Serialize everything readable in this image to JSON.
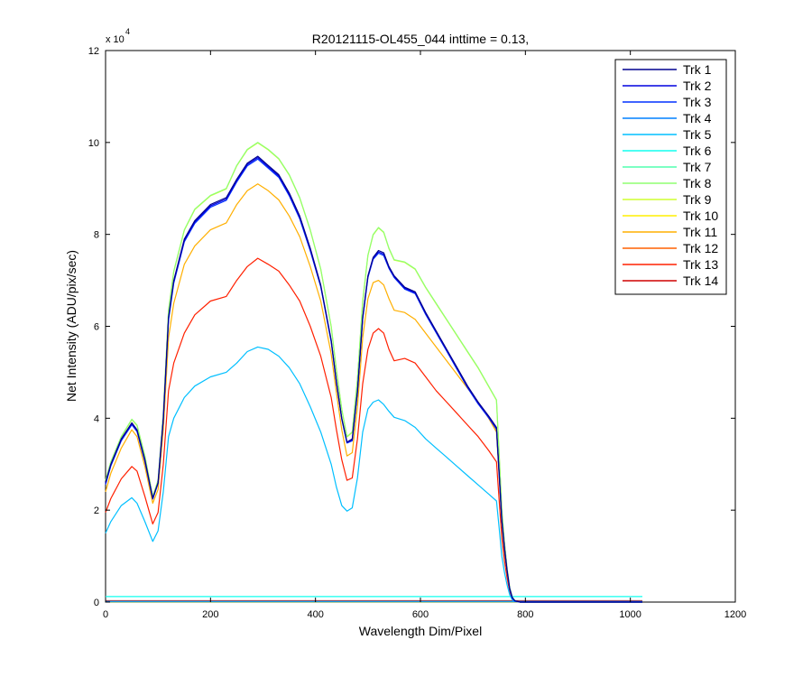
{
  "chart_data": {
    "type": "line",
    "title": "R20121115-OL455_044 inttime = 0.13,",
    "xlabel": "Wavelength Dim/Pixel",
    "ylabel": "Net Intensity (ADU/pix/sec)",
    "y_exponent_base": "x 10",
    "y_exponent_power": "4",
    "xlim": [
      0,
      1200
    ],
    "ylim": [
      0,
      120000
    ],
    "x_ticks": [
      0,
      200,
      400,
      600,
      800,
      1000,
      1200
    ],
    "x_tick_labels": [
      "0",
      "200",
      "400",
      "600",
      "800",
      "1000",
      "1200"
    ],
    "y_ticks": [
      0,
      20000,
      40000,
      60000,
      80000,
      100000,
      120000
    ],
    "y_tick_labels": [
      "0",
      "2",
      "4",
      "6",
      "8",
      "10",
      "12"
    ],
    "grid": false,
    "legend_position": "top-right",
    "x": [
      0,
      10,
      30,
      50,
      60,
      75,
      90,
      100,
      110,
      120,
      130,
      150,
      170,
      200,
      230,
      250,
      270,
      290,
      310,
      330,
      350,
      370,
      390,
      410,
      430,
      440,
      450,
      460,
      470,
      480,
      490,
      500,
      510,
      520,
      530,
      540,
      550,
      570,
      590,
      610,
      630,
      650,
      670,
      690,
      710,
      730,
      745,
      750,
      755,
      760,
      765,
      770,
      775,
      780,
      790,
      800,
      850,
      900,
      950,
      1000,
      1023
    ],
    "series": [
      {
        "name": "Trk 1",
        "color": "#00008f",
        "values": [
          26000,
          30000,
          35500,
          39000,
          37500,
          31000,
          22600,
          26000,
          40000,
          62000,
          70000,
          79000,
          83000,
          86500,
          88000,
          92000,
          95500,
          97000,
          95000,
          93000,
          89000,
          84000,
          77000,
          69000,
          57000,
          48000,
          40000,
          34800,
          35500,
          46000,
          62000,
          71000,
          75000,
          76500,
          76000,
          73000,
          71000,
          68500,
          67500,
          63000,
          59000,
          55000,
          51000,
          47000,
          43500,
          40500,
          38000,
          28000,
          18000,
          12000,
          7000,
          3000,
          1000,
          300,
          0,
          0,
          0,
          0,
          0,
          0,
          0
        ]
      },
      {
        "name": "Trk 2",
        "color": "#0000df",
        "values": [
          25800,
          29800,
          35300,
          38800,
          37300,
          30800,
          22500,
          25900,
          39800,
          61700,
          69700,
          78700,
          82700,
          86200,
          87700,
          91700,
          95200,
          96700,
          94700,
          92700,
          88700,
          83700,
          76700,
          68800,
          56800,
          47800,
          39900,
          34700,
          35300,
          45800,
          61800,
          70800,
          74800,
          76200,
          75700,
          72800,
          70800,
          68300,
          67300,
          62800,
          58800,
          54800,
          50800,
          46800,
          43300,
          40300,
          37800,
          27800,
          17800,
          11800,
          6900,
          2900,
          900,
          250,
          0,
          0,
          0,
          0,
          0,
          0,
          0
        ]
      },
      {
        "name": "Trk 3",
        "color": "#0030ff",
        "values": [
          25600,
          29600,
          35100,
          38600,
          37100,
          30600,
          22400,
          25800,
          39600,
          61400,
          69400,
          78400,
          82400,
          85900,
          87400,
          91400,
          94900,
          96400,
          94400,
          92400,
          88400,
          83400,
          76400,
          68600,
          56600,
          47600,
          39800,
          34600,
          35100,
          45600,
          61600,
          70600,
          74600,
          75900,
          75400,
          72600,
          70600,
          68100,
          67100,
          62600,
          58600,
          54600,
          50600,
          46600,
          43100,
          40100,
          37600,
          27600,
          17600,
          11600,
          6800,
          2800,
          800,
          200,
          0,
          0,
          0,
          0,
          0,
          0,
          0
        ]
      },
      {
        "name": "Trk 4",
        "color": "#0080ff",
        "values": [
          150,
          150,
          150,
          150,
          150,
          150,
          150,
          150,
          150,
          150,
          150,
          150,
          150,
          150,
          150,
          150,
          150,
          150,
          150,
          150,
          150,
          150,
          150,
          150,
          150,
          150,
          150,
          150,
          150,
          150,
          150,
          150,
          150,
          150,
          150,
          150,
          150,
          150,
          150,
          150,
          150,
          150,
          150,
          150,
          150,
          150,
          150,
          150,
          150,
          150,
          150,
          150,
          150,
          150,
          150,
          150,
          150,
          150,
          150,
          150,
          150
        ]
      },
      {
        "name": "Trk 5",
        "color": "#00bfff",
        "values": [
          15000,
          17500,
          21000,
          22700,
          21500,
          17500,
          13200,
          15500,
          24000,
          36000,
          40000,
          44500,
          47000,
          49000,
          50000,
          52000,
          54500,
          55500,
          55000,
          53500,
          51000,
          47500,
          42500,
          37000,
          30000,
          25000,
          21000,
          19800,
          20500,
          27000,
          37000,
          42000,
          43500,
          44000,
          43000,
          41500,
          40200,
          39500,
          38000,
          35500,
          33500,
          31500,
          29500,
          27500,
          25500,
          23500,
          22000,
          16000,
          10000,
          6500,
          3800,
          1600,
          500,
          150,
          0,
          0,
          0,
          0,
          0,
          0,
          0
        ]
      },
      {
        "name": "Trk 6",
        "color": "#10ffef",
        "values": [
          1200,
          1200,
          1200,
          1200,
          1200,
          1200,
          1200,
          1200,
          1200,
          1200,
          1200,
          1200,
          1200,
          1200,
          1200,
          1200,
          1200,
          1200,
          1200,
          1200,
          1200,
          1200,
          1200,
          1200,
          1200,
          1200,
          1200,
          1200,
          1200,
          1200,
          1200,
          1200,
          1200,
          1200,
          1200,
          1200,
          1200,
          1200,
          1200,
          1200,
          1200,
          1200,
          1200,
          1200,
          1200,
          1200,
          1200,
          1200,
          1200,
          1200,
          1200,
          1200,
          1200,
          1200,
          1200,
          1200,
          1200,
          1200,
          1200,
          1200,
          1200
        ]
      },
      {
        "name": "Trk 7",
        "color": "#50ffaf",
        "values": [
          100,
          100,
          100,
          100,
          100,
          100,
          100,
          100,
          100,
          100,
          100,
          100,
          100,
          100,
          100,
          100,
          100,
          100,
          100,
          100,
          100,
          100,
          100,
          100,
          100,
          100,
          100,
          100,
          100,
          100,
          100,
          100,
          100,
          100,
          100,
          100,
          100,
          100,
          100,
          100,
          100,
          100,
          100,
          100,
          100,
          100,
          100,
          100,
          100,
          100,
          100,
          100,
          100,
          100,
          100,
          100,
          100,
          100,
          100,
          100,
          100
        ]
      },
      {
        "name": "Trk 8",
        "color": "#8fff70",
        "values": [
          26500,
          30500,
          36000,
          39800,
          38500,
          31800,
          23000,
          26500,
          41000,
          63500,
          72000,
          81000,
          85500,
          88500,
          90000,
          95000,
          98500,
          100000,
          98500,
          96500,
          93000,
          88000,
          81000,
          72500,
          60000,
          50500,
          42000,
          36000,
          37000,
          48500,
          65500,
          75500,
          80000,
          81500,
          80500,
          77000,
          74500,
          74000,
          72500,
          68500,
          65000,
          61500,
          58000,
          54500,
          51000,
          47000,
          44000,
          32000,
          20000,
          13000,
          7500,
          3200,
          1100,
          300,
          0,
          0,
          0,
          0,
          0,
          0,
          0
        ]
      },
      {
        "name": "Trk 9",
        "color": "#cfff30",
        "values": [
          26400,
          30400,
          35900,
          39700,
          38400,
          31700,
          22900,
          26400,
          40900,
          63400,
          71900,
          80900,
          85400,
          88400,
          89900,
          94900,
          98400,
          99900,
          98400,
          96400,
          92900,
          87900,
          80900,
          72400,
          59900,
          50400,
          41900,
          35900,
          36900,
          48400,
          65400,
          75400,
          79900,
          81400,
          80400,
          76900,
          74400,
          73900,
          72400,
          68400,
          64900,
          61400,
          57900,
          54400,
          50900,
          46900,
          43900,
          31900,
          19900,
          12900,
          7400,
          3100,
          1000,
          250,
          0,
          0,
          0,
          0,
          0,
          0,
          0
        ]
      },
      {
        "name": "Trk 10",
        "color": "#ffef00",
        "values": [
          80,
          80,
          80,
          80,
          80,
          80,
          80,
          80,
          80,
          80,
          80,
          80,
          80,
          80,
          80,
          80,
          80,
          80,
          80,
          80,
          80,
          80,
          80,
          80,
          80,
          80,
          80,
          80,
          80,
          80,
          80,
          80,
          80,
          80,
          80,
          80,
          80,
          80,
          80,
          80,
          80,
          80,
          80,
          80,
          80,
          80,
          80,
          80,
          80,
          80,
          80,
          80,
          80,
          80,
          80,
          80,
          80,
          80,
          80,
          80,
          80
        ]
      },
      {
        "name": "Trk 11",
        "color": "#ffaf00",
        "values": [
          24000,
          28000,
          33500,
          37500,
          36000,
          29500,
          21500,
          24500,
          37500,
          57500,
          65000,
          73500,
          77500,
          81000,
          82500,
          86500,
          89500,
          91000,
          89500,
          87500,
          84000,
          79500,
          73000,
          65500,
          54000,
          45500,
          37500,
          31800,
          32500,
          42500,
          57500,
          66000,
          69500,
          70000,
          69000,
          66000,
          63500,
          63000,
          61500,
          58500,
          55500,
          52500,
          49500,
          46500,
          43500,
          40000,
          37000,
          27000,
          17000,
          11000,
          6500,
          2800,
          900,
          250,
          0,
          0,
          0,
          0,
          0,
          0,
          0
        ]
      },
      {
        "name": "Trk 12",
        "color": "#ff6000",
        "values": [
          200,
          200,
          200,
          200,
          200,
          200,
          200,
          200,
          200,
          200,
          200,
          200,
          200,
          200,
          200,
          200,
          200,
          200,
          200,
          200,
          200,
          200,
          200,
          200,
          200,
          200,
          200,
          200,
          200,
          200,
          200,
          200,
          200,
          200,
          200,
          200,
          200,
          200,
          200,
          200,
          200,
          200,
          200,
          200,
          200,
          200,
          200,
          200,
          200,
          200,
          200,
          200,
          200,
          200,
          200,
          200,
          200,
          200,
          200,
          200,
          200
        ]
      },
      {
        "name": "Trk 13",
        "color": "#ff2000",
        "values": [
          19500,
          22500,
          26800,
          29500,
          28500,
          23000,
          17000,
          19500,
          30000,
          46000,
          52000,
          58500,
          62500,
          65500,
          66500,
          70000,
          73000,
          74800,
          73500,
          72000,
          69000,
          65500,
          60000,
          53500,
          44500,
          37500,
          31000,
          26500,
          27000,
          35500,
          47500,
          55000,
          58500,
          59500,
          58500,
          55000,
          52500,
          53000,
          52000,
          49000,
          46000,
          43500,
          41000,
          38500,
          36000,
          33000,
          30500,
          22000,
          14000,
          9000,
          5300,
          2300,
          750,
          200,
          0,
          0,
          0,
          0,
          0,
          0,
          0
        ]
      },
      {
        "name": "Trk 14",
        "color": "#cf0000",
        "values": [
          300,
          300,
          300,
          300,
          300,
          300,
          300,
          300,
          300,
          300,
          300,
          300,
          300,
          300,
          300,
          300,
          300,
          300,
          300,
          300,
          300,
          300,
          300,
          300,
          300,
          300,
          300,
          300,
          300,
          300,
          300,
          300,
          300,
          300,
          300,
          300,
          300,
          300,
          300,
          300,
          300,
          300,
          300,
          300,
          300,
          300,
          300,
          300,
          300,
          300,
          300,
          300,
          300,
          300,
          300,
          300,
          300,
          300,
          300,
          300,
          300
        ]
      }
    ]
  }
}
